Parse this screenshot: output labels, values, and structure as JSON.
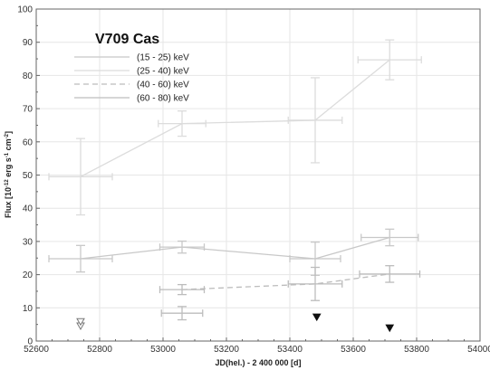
{
  "chart_data": {
    "type": "line",
    "title": "V709 Cas",
    "xlabel": "JD(hel.) - 2 400 000 [d]",
    "ylabel_parts": [
      "Flux [10",
      "-12",
      " erg s",
      "-1",
      " cm",
      "-2",
      "]"
    ],
    "xlim": [
      52600,
      54000
    ],
    "ylim": [
      0,
      100
    ],
    "xticks": [
      "52600",
      "52800",
      "53000",
      "53200",
      "53400",
      "53600",
      "53800",
      "54000"
    ],
    "yticks": [
      "0",
      "10",
      "20",
      "30",
      "40",
      "50",
      "60",
      "70",
      "80",
      "90",
      "100"
    ],
    "grid": true,
    "legend_position": "top-left",
    "colors": {
      "s1": "#c8c8c8",
      "s2": "#dcdcdc",
      "s3": "#bcbcbc",
      "s4": "#bdbdbd",
      "axis": "#666666",
      "grid": "#e6e6e6",
      "limits": "#111111"
    },
    "series": [
      {
        "name": "(15 - 25) keV",
        "dash": "none",
        "points": [
          {
            "x": 52740,
            "y": 24.8,
            "xerr": 100,
            "yerr": 4.0
          },
          {
            "x": 53060,
            "y": 28.3,
            "xerr": 70,
            "yerr": 1.8
          },
          {
            "x": 53480,
            "y": 24.8,
            "xerr": 80,
            "yerr": 5.0
          },
          {
            "x": 53715,
            "y": 31.2,
            "xerr": 90,
            "yerr": 2.5
          }
        ]
      },
      {
        "name": "(25 - 40) keV",
        "dash": "none",
        "points": [
          {
            "x": 52740,
            "y": 49.5,
            "xerr": 100,
            "yerr": 11.5
          },
          {
            "x": 53060,
            "y": 65.5,
            "xerr": 75,
            "yerr": 3.8
          },
          {
            "x": 53480,
            "y": 66.5,
            "xerr": 85,
            "yerr": 12.8
          },
          {
            "x": 53715,
            "y": 84.7,
            "xerr": 100,
            "yerr": 6.0
          }
        ]
      },
      {
        "name": "(40 - 60) keV",
        "dash": "6,4",
        "points": [
          {
            "x": 53060,
            "y": 15.5,
            "xerr": 70,
            "yerr": 1.5
          },
          {
            "x": 53480,
            "y": 17.2,
            "xerr": 85,
            "yerr": 5.0
          },
          {
            "x": 53715,
            "y": 20.2,
            "xerr": 95,
            "yerr": 2.5
          }
        ]
      },
      {
        "name": "(60 - 80) keV",
        "dash": "none",
        "points": [
          {
            "x": 53060,
            "y": 8.4,
            "xerr": 65,
            "yerr": 2.0
          }
        ]
      }
    ],
    "upper_limits": [
      {
        "x": 52740,
        "y": 4.5,
        "filled": false
      },
      {
        "x": 52740,
        "y": 5.8,
        "filled": false
      },
      {
        "x": 53485,
        "y": 7.2,
        "filled": true
      },
      {
        "x": 53715,
        "y": 3.9,
        "filled": true
      }
    ]
  }
}
